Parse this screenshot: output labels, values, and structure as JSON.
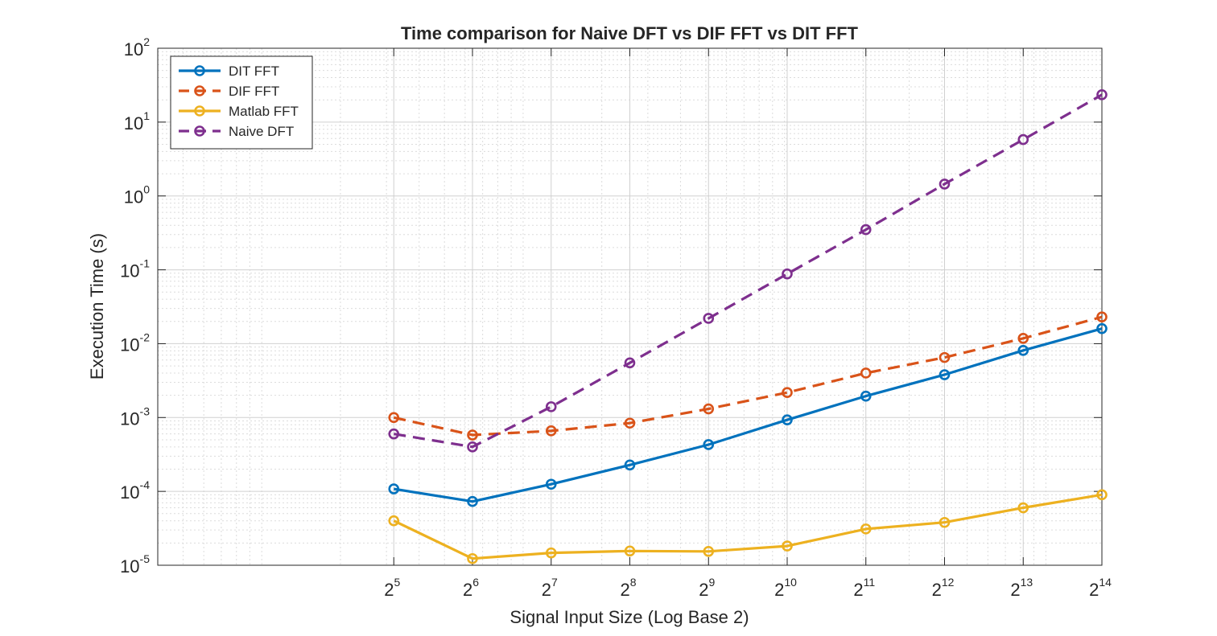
{
  "chart_data": {
    "type": "line",
    "title": "Time comparison for Naive DFT vs DIF FFT vs DIT FFT",
    "xlabel": "Signal Input Size (Log Base 2)",
    "ylabel": "Execution Time (s)",
    "x_scale": "log2",
    "y_scale": "log10",
    "xlim": [
      4,
      16384
    ],
    "ylim": [
      1e-05,
      100
    ],
    "x": [
      32,
      64,
      128,
      256,
      512,
      1024,
      2048,
      4096,
      8192,
      16384
    ],
    "x_tick_labels": [
      {
        "base": "2",
        "exp": "5"
      },
      {
        "base": "2",
        "exp": "6"
      },
      {
        "base": "2",
        "exp": "7"
      },
      {
        "base": "2",
        "exp": "8"
      },
      {
        "base": "2",
        "exp": "9"
      },
      {
        "base": "2",
        "exp": "10"
      },
      {
        "base": "2",
        "exp": "11"
      },
      {
        "base": "2",
        "exp": "12"
      },
      {
        "base": "2",
        "exp": "13"
      },
      {
        "base": "2",
        "exp": "14"
      }
    ],
    "y_tick_labels": [
      {
        "value": 1e-05,
        "base": "10",
        "exp": "-5"
      },
      {
        "value": 0.0001,
        "base": "10",
        "exp": "-4"
      },
      {
        "value": 0.001,
        "base": "10",
        "exp": "-3"
      },
      {
        "value": 0.01,
        "base": "10",
        "exp": "-2"
      },
      {
        "value": 0.1,
        "base": "10",
        "exp": "-1"
      },
      {
        "value": 1,
        "base": "10",
        "exp": "0"
      },
      {
        "value": 10,
        "base": "10",
        "exp": "1"
      },
      {
        "value": 100,
        "base": "10",
        "exp": "2"
      }
    ],
    "grid": true,
    "minor_grid": true,
    "legend_placement": "top-left",
    "series": [
      {
        "name": "DIT FFT",
        "color": "#0072BD",
        "dash": "solid",
        "values": [
          0.000108,
          7.3e-05,
          0.000125,
          0.000228,
          0.00043,
          0.00093,
          0.00195,
          0.0038,
          0.0081,
          0.016
        ]
      },
      {
        "name": "DIF FFT",
        "color": "#D95319",
        "dash": "dashed",
        "values": [
          0.001,
          0.00058,
          0.00066,
          0.00084,
          0.00131,
          0.00218,
          0.004,
          0.0065,
          0.0118,
          0.023
        ]
      },
      {
        "name": "Matlab FFT",
        "color": "#EDB120",
        "dash": "solid",
        "values": [
          4e-05,
          1.23e-05,
          1.47e-05,
          1.56e-05,
          1.54e-05,
          1.82e-05,
          3.1e-05,
          3.8e-05,
          6e-05,
          9e-05
        ]
      },
      {
        "name": "Naive DFT",
        "color": "#7E2F8E",
        "dash": "dashed",
        "values": [
          0.0006,
          0.0004,
          0.0014,
          0.0055,
          0.022,
          0.088,
          0.35,
          1.45,
          5.8,
          23.5
        ]
      }
    ]
  }
}
